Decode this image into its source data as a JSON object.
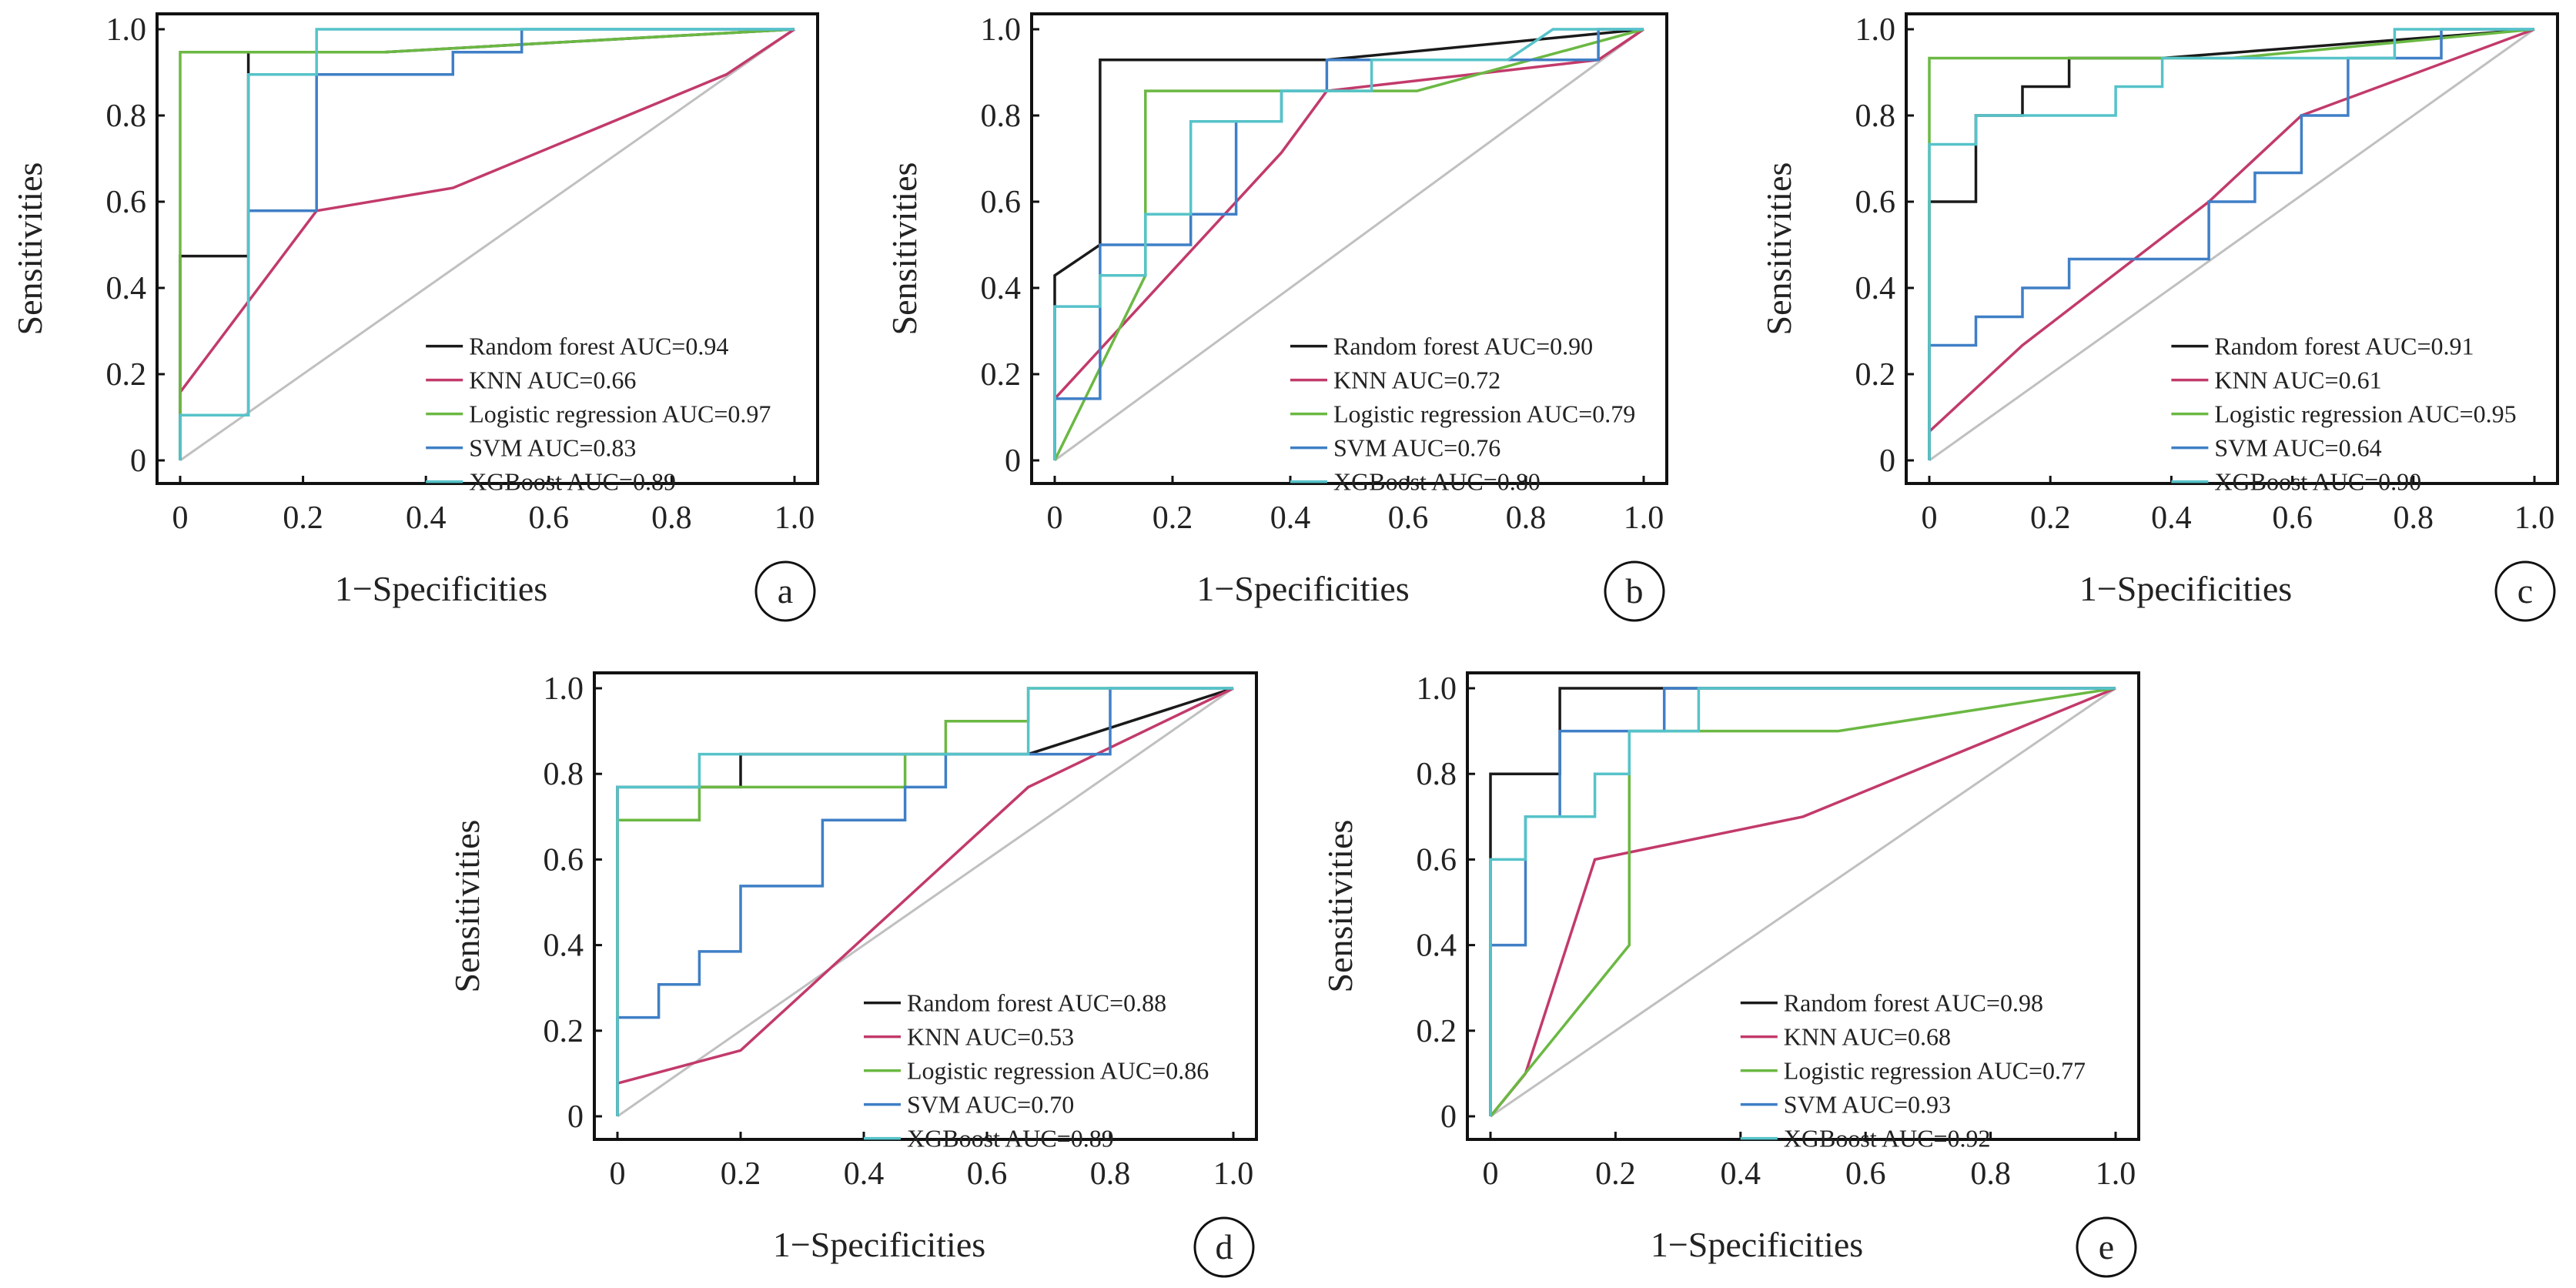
{
  "chart_data": [
    {
      "type": "line",
      "panel": "a",
      "xlabel": "1−Specificities",
      "ylabel": "Sensitivities",
      "xlim": [
        0,
        1
      ],
      "ylim": [
        0,
        1
      ],
      "xticks": [
        "0",
        "0.2",
        "0.4",
        "0.6",
        "0.8",
        "1.0"
      ],
      "yticks": [
        "0",
        "0.2",
        "0.4",
        "0.6",
        "0.8",
        "1.0"
      ],
      "legend_position": "bottom-right",
      "grid": false,
      "series": [
        {
          "name": "Random forest AUC=0.94",
          "color": "#1a1a1a",
          "points": [
            [
              0,
              0
            ],
            [
              0,
              0.474
            ],
            [
              0.111,
              0.474
            ],
            [
              0.111,
              0.947
            ],
            [
              0.333,
              0.947
            ],
            [
              1,
              1
            ]
          ]
        },
        {
          "name": "KNN AUC=0.66",
          "color": "#c23a6b",
          "points": [
            [
              0,
              0.158
            ],
            [
              0.222,
              0.579
            ],
            [
              0.444,
              0.632
            ],
            [
              0.889,
              0.895
            ],
            [
              1,
              1
            ]
          ]
        },
        {
          "name": "Logistic regression AUC=0.97",
          "color": "#6bb843",
          "points": [
            [
              0,
              0
            ],
            [
              0,
              0.947
            ],
            [
              0.333,
              0.947
            ],
            [
              1,
              1
            ]
          ]
        },
        {
          "name": "SVM AUC=0.83",
          "color": "#3f7fc6",
          "points": [
            [
              0,
              0
            ],
            [
              0,
              0.105
            ],
            [
              0.111,
              0.105
            ],
            [
              0.111,
              0.579
            ],
            [
              0.222,
              0.579
            ],
            [
              0.222,
              0.895
            ],
            [
              0.444,
              0.895
            ],
            [
              0.444,
              0.947
            ],
            [
              0.556,
              0.947
            ],
            [
              0.556,
              1
            ],
            [
              1,
              1
            ]
          ]
        },
        {
          "name": "XGBoost AUC=0.89",
          "color": "#56c3c9",
          "points": [
            [
              0,
              0
            ],
            [
              0,
              0.105
            ],
            [
              0.111,
              0.105
            ],
            [
              0.111,
              0.895
            ],
            [
              0.222,
              0.895
            ],
            [
              0.222,
              1
            ],
            [
              1,
              1
            ]
          ]
        }
      ]
    },
    {
      "type": "line",
      "panel": "b",
      "xlabel": "1−Specificities",
      "ylabel": "Sensitivities",
      "xlim": [
        0,
        1
      ],
      "ylim": [
        0,
        1
      ],
      "xticks": [
        "0",
        "0.2",
        "0.4",
        "0.6",
        "0.8",
        "1.0"
      ],
      "yticks": [
        "0",
        "0.2",
        "0.4",
        "0.6",
        "0.8",
        "1.0"
      ],
      "legend_position": "bottom-right",
      "grid": false,
      "series": [
        {
          "name": "Random forest AUC=0.90",
          "color": "#1a1a1a",
          "points": [
            [
              0,
              0
            ],
            [
              0,
              0.429
            ],
            [
              0.077,
              0.5
            ],
            [
              0.077,
              0.929
            ],
            [
              0.462,
              0.929
            ],
            [
              1,
              1
            ]
          ]
        },
        {
          "name": "KNN AUC=0.72",
          "color": "#c23a6b",
          "points": [
            [
              0,
              0.143
            ],
            [
              0.385,
              0.714
            ],
            [
              0.462,
              0.857
            ],
            [
              0.923,
              0.929
            ],
            [
              1,
              1
            ]
          ]
        },
        {
          "name": "Logistic regression AUC=0.79",
          "color": "#6bb843",
          "points": [
            [
              0,
              0
            ],
            [
              0.154,
              0.429
            ],
            [
              0.154,
              0.857
            ],
            [
              0.615,
              0.857
            ],
            [
              1,
              1
            ]
          ]
        },
        {
          "name": "SVM AUC=0.76",
          "color": "#3f7fc6",
          "points": [
            [
              0,
              0
            ],
            [
              0,
              0.143
            ],
            [
              0.077,
              0.143
            ],
            [
              0.077,
              0.5
            ],
            [
              0.231,
              0.5
            ],
            [
              0.231,
              0.571
            ],
            [
              0.308,
              0.571
            ],
            [
              0.308,
              0.786
            ],
            [
              0.385,
              0.786
            ],
            [
              0.385,
              0.857
            ],
            [
              0.462,
              0.857
            ],
            [
              0.462,
              0.929
            ],
            [
              0.923,
              0.929
            ],
            [
              0.923,
              1
            ],
            [
              1,
              1
            ]
          ]
        },
        {
          "name": "XGBoost AUC=0.80",
          "color": "#56c3c9",
          "points": [
            [
              0,
              0
            ],
            [
              0,
              0.357
            ],
            [
              0.077,
              0.357
            ],
            [
              0.077,
              0.429
            ],
            [
              0.154,
              0.429
            ],
            [
              0.154,
              0.571
            ],
            [
              0.231,
              0.571
            ],
            [
              0.231,
              0.786
            ],
            [
              0.385,
              0.786
            ],
            [
              0.385,
              0.857
            ],
            [
              0.538,
              0.857
            ],
            [
              0.538,
              0.929
            ],
            [
              0.769,
              0.929
            ],
            [
              0.846,
              1
            ],
            [
              1,
              1
            ]
          ]
        }
      ]
    },
    {
      "type": "line",
      "panel": "c",
      "xlabel": "1−Specificities",
      "ylabel": "Sensitivities",
      "xlim": [
        0,
        1
      ],
      "ylim": [
        0,
        1
      ],
      "xticks": [
        "0",
        "0.2",
        "0.4",
        "0.6",
        "0.8",
        "1.0"
      ],
      "yticks": [
        "0",
        "0.2",
        "0.4",
        "0.6",
        "0.8",
        "1.0"
      ],
      "legend_position": "bottom-right",
      "grid": false,
      "series": [
        {
          "name": "Random forest AUC=0.91",
          "color": "#1a1a1a",
          "points": [
            [
              0,
              0
            ],
            [
              0,
              0.6
            ],
            [
              0.077,
              0.6
            ],
            [
              0.077,
              0.8
            ],
            [
              0.154,
              0.8
            ],
            [
              0.154,
              0.867
            ],
            [
              0.231,
              0.867
            ],
            [
              0.231,
              0.933
            ],
            [
              0.385,
              0.933
            ],
            [
              1,
              1
            ]
          ]
        },
        {
          "name": "KNN AUC=0.61",
          "color": "#c23a6b",
          "points": [
            [
              0,
              0.067
            ],
            [
              0.154,
              0.267
            ],
            [
              0.462,
              0.6
            ],
            [
              0.615,
              0.8
            ],
            [
              1,
              1
            ]
          ]
        },
        {
          "name": "Logistic regression AUC=0.95",
          "color": "#6bb843",
          "points": [
            [
              0,
              0
            ],
            [
              0,
              0.933
            ],
            [
              0.5,
              0.933
            ],
            [
              1,
              1
            ]
          ]
        },
        {
          "name": "SVM AUC=0.64",
          "color": "#3f7fc6",
          "points": [
            [
              0,
              0
            ],
            [
              0,
              0.267
            ],
            [
              0.077,
              0.267
            ],
            [
              0.077,
              0.333
            ],
            [
              0.154,
              0.333
            ],
            [
              0.154,
              0.4
            ],
            [
              0.231,
              0.4
            ],
            [
              0.231,
              0.467
            ],
            [
              0.462,
              0.467
            ],
            [
              0.462,
              0.6
            ],
            [
              0.538,
              0.6
            ],
            [
              0.538,
              0.667
            ],
            [
              0.615,
              0.667
            ],
            [
              0.615,
              0.8
            ],
            [
              0.692,
              0.8
            ],
            [
              0.692,
              0.933
            ],
            [
              0.846,
              0.933
            ],
            [
              0.846,
              1
            ],
            [
              1,
              1
            ]
          ]
        },
        {
          "name": "XGBoost AUC=0.90",
          "color": "#56c3c9",
          "points": [
            [
              0,
              0
            ],
            [
              0,
              0.733
            ],
            [
              0.077,
              0.733
            ],
            [
              0.077,
              0.8
            ],
            [
              0.308,
              0.8
            ],
            [
              0.308,
              0.867
            ],
            [
              0.385,
              0.867
            ],
            [
              0.385,
              0.933
            ],
            [
              0.769,
              0.933
            ],
            [
              0.769,
              1
            ],
            [
              1,
              1
            ]
          ]
        }
      ]
    },
    {
      "type": "line",
      "panel": "d",
      "xlabel": "1−Specificities",
      "ylabel": "Sensitivities",
      "xlim": [
        0,
        1
      ],
      "ylim": [
        0,
        1
      ],
      "xticks": [
        "0",
        "0.2",
        "0.4",
        "0.6",
        "0.8",
        "1.0"
      ],
      "yticks": [
        "0",
        "0.2",
        "0.4",
        "0.6",
        "0.8",
        "1.0"
      ],
      "legend_position": "bottom-right",
      "grid": false,
      "series": [
        {
          "name": "Random forest AUC=0.88",
          "color": "#1a1a1a",
          "points": [
            [
              0,
              0
            ],
            [
              0,
              0.769
            ],
            [
              0.2,
              0.769
            ],
            [
              0.2,
              0.846
            ],
            [
              0.667,
              0.846
            ],
            [
              1,
              1
            ]
          ]
        },
        {
          "name": "KNN AUC=0.53",
          "color": "#c23a6b",
          "points": [
            [
              0,
              0.077
            ],
            [
              0.2,
              0.154
            ],
            [
              0.667,
              0.769
            ],
            [
              1,
              1
            ]
          ]
        },
        {
          "name": "Logistic regression AUC=0.86",
          "color": "#6bb843",
          "points": [
            [
              0,
              0
            ],
            [
              0,
              0.692
            ],
            [
              0.133,
              0.692
            ],
            [
              0.133,
              0.769
            ],
            [
              0.467,
              0.769
            ],
            [
              0.467,
              0.846
            ],
            [
              0.533,
              0.846
            ],
            [
              0.533,
              0.923
            ],
            [
              0.667,
              0.923
            ],
            [
              0.667,
              1
            ],
            [
              1,
              1
            ]
          ]
        },
        {
          "name": "SVM AUC=0.70",
          "color": "#3f7fc6",
          "points": [
            [
              0,
              0
            ],
            [
              0,
              0.231
            ],
            [
              0.067,
              0.231
            ],
            [
              0.067,
              0.308
            ],
            [
              0.133,
              0.308
            ],
            [
              0.133,
              0.385
            ],
            [
              0.2,
              0.385
            ],
            [
              0.2,
              0.538
            ],
            [
              0.333,
              0.538
            ],
            [
              0.333,
              0.692
            ],
            [
              0.467,
              0.692
            ],
            [
              0.467,
              0.769
            ],
            [
              0.533,
              0.769
            ],
            [
              0.533,
              0.846
            ],
            [
              0.8,
              0.846
            ],
            [
              0.8,
              1
            ],
            [
              1,
              1
            ]
          ]
        },
        {
          "name": "XGBoost AUC=0.89",
          "color": "#56c3c9",
          "points": [
            [
              0,
              0
            ],
            [
              0,
              0.769
            ],
            [
              0.133,
              0.769
            ],
            [
              0.133,
              0.846
            ],
            [
              0.667,
              0.846
            ],
            [
              0.667,
              1
            ],
            [
              1,
              1
            ]
          ]
        }
      ]
    },
    {
      "type": "line",
      "panel": "e",
      "xlabel": "1−Specificities",
      "ylabel": "Sensitivities",
      "xlim": [
        0,
        1
      ],
      "ylim": [
        0,
        1
      ],
      "xticks": [
        "0",
        "0.2",
        "0.4",
        "0.6",
        "0.8",
        "1.0"
      ],
      "yticks": [
        "0",
        "0.2",
        "0.4",
        "0.6",
        "0.8",
        "1.0"
      ],
      "legend_position": "bottom-right",
      "grid": false,
      "series": [
        {
          "name": "Random forest AUC=0.98",
          "color": "#1a1a1a",
          "points": [
            [
              0,
              0
            ],
            [
              0,
              0.8
            ],
            [
              0.111,
              0.8
            ],
            [
              0.111,
              1
            ],
            [
              1,
              1
            ]
          ]
        },
        {
          "name": "KNN AUC=0.68",
          "color": "#c23a6b",
          "points": [
            [
              0,
              0
            ],
            [
              0.056,
              0.1
            ],
            [
              0.167,
              0.6
            ],
            [
              0.5,
              0.7
            ],
            [
              1,
              1
            ]
          ]
        },
        {
          "name": "Logistic regression AUC=0.77",
          "color": "#6bb843",
          "points": [
            [
              0,
              0
            ],
            [
              0.222,
              0.4
            ],
            [
              0.222,
              0.9
            ],
            [
              0.556,
              0.9
            ],
            [
              1,
              1
            ]
          ]
        },
        {
          "name": "SVM AUC=0.93",
          "color": "#3f7fc6",
          "points": [
            [
              0,
              0
            ],
            [
              0,
              0.4
            ],
            [
              0.056,
              0.4
            ],
            [
              0.056,
              0.7
            ],
            [
              0.111,
              0.7
            ],
            [
              0.111,
              0.9
            ],
            [
              0.278,
              0.9
            ],
            [
              0.278,
              1
            ],
            [
              1,
              1
            ]
          ]
        },
        {
          "name": "XGBoost AUC=0.92",
          "color": "#56c3c9",
          "points": [
            [
              0,
              0
            ],
            [
              0,
              0.6
            ],
            [
              0.056,
              0.6
            ],
            [
              0.056,
              0.7
            ],
            [
              0.167,
              0.7
            ],
            [
              0.167,
              0.8
            ],
            [
              0.222,
              0.8
            ],
            [
              0.222,
              0.9
            ],
            [
              0.333,
              0.9
            ],
            [
              0.333,
              1
            ],
            [
              1,
              1
            ]
          ]
        }
      ]
    }
  ]
}
